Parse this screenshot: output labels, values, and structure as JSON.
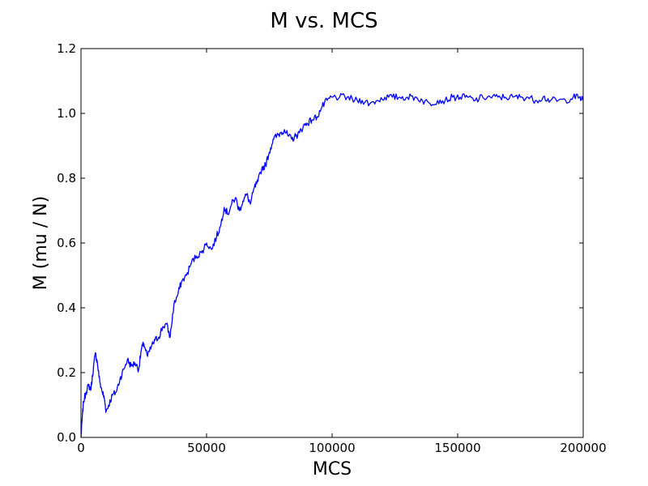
{
  "chart_data": {
    "type": "line",
    "title": "M vs. MCS",
    "xlabel": "MCS",
    "ylabel": "M (mu / N)",
    "xlim": [
      0,
      200000
    ],
    "ylim": [
      0,
      1.2
    ],
    "xticks": [
      0,
      50000,
      100000,
      150000,
      200000
    ],
    "xtick_labels": [
      "0",
      "50000",
      "100000",
      "150000",
      "200000"
    ],
    "yticks": [
      0.0,
      0.2,
      0.4,
      0.6,
      0.8,
      1.0,
      1.2
    ],
    "ytick_labels": [
      "0.0",
      "0.2",
      "0.4",
      "0.6",
      "0.8",
      "1.0",
      "1.2"
    ],
    "grid": false,
    "series": [
      {
        "color": "#0000ff",
        "x": [
          0,
          400,
          1000,
          2000,
          3000,
          4000,
          5000,
          5800,
          6500,
          7500,
          8500,
          9300,
          10000,
          11000,
          12500,
          14000,
          15500,
          17000,
          18500,
          20000,
          21500,
          23000,
          24000,
          25000,
          26500,
          28000,
          29500,
          31000,
          32500,
          34000,
          35500,
          37000,
          38500,
          40000,
          42000,
          44000,
          46000,
          48000,
          50000,
          52000,
          54000,
          55500,
          57000,
          58500,
          60000,
          61500,
          63000,
          64500,
          66000,
          67500,
          69000,
          70500,
          72000,
          73500,
          75000,
          76500,
          78000,
          79500,
          81000,
          82500,
          84000,
          85500,
          87000,
          88500,
          90000,
          92000,
          94000,
          96000,
          98000,
          100000,
          103000,
          106000,
          109000,
          112000,
          115000,
          118000,
          121000,
          124000,
          127000,
          130000,
          133000,
          136000,
          139000,
          142000,
          145000,
          148000,
          151000,
          154000,
          157000,
          160000,
          163000,
          166000,
          169000,
          172000,
          175000,
          178000,
          181000,
          184000,
          187000,
          190000,
          193000,
          196000,
          198500,
          200000
        ],
        "y": [
          0.0,
          0.05,
          0.11,
          0.14,
          0.16,
          0.15,
          0.22,
          0.26,
          0.23,
          0.17,
          0.14,
          0.12,
          0.08,
          0.1,
          0.13,
          0.14,
          0.18,
          0.21,
          0.24,
          0.22,
          0.23,
          0.21,
          0.27,
          0.29,
          0.25,
          0.28,
          0.3,
          0.31,
          0.34,
          0.35,
          0.31,
          0.41,
          0.44,
          0.48,
          0.5,
          0.54,
          0.56,
          0.57,
          0.6,
          0.58,
          0.62,
          0.65,
          0.71,
          0.69,
          0.72,
          0.74,
          0.7,
          0.73,
          0.75,
          0.72,
          0.77,
          0.79,
          0.83,
          0.84,
          0.88,
          0.92,
          0.93,
          0.94,
          0.95,
          0.93,
          0.92,
          0.93,
          0.94,
          0.96,
          0.97,
          0.98,
          0.99,
          1.02,
          1.04,
          1.05,
          1.05,
          1.05,
          1.04,
          1.04,
          1.03,
          1.04,
          1.05,
          1.05,
          1.05,
          1.05,
          1.05,
          1.04,
          1.03,
          1.04,
          1.04,
          1.05,
          1.05,
          1.05,
          1.04,
          1.05,
          1.05,
          1.05,
          1.05,
          1.05,
          1.05,
          1.05,
          1.04,
          1.05,
          1.04,
          1.04,
          1.04,
          1.05,
          1.05,
          1.04
        ]
      }
    ]
  }
}
